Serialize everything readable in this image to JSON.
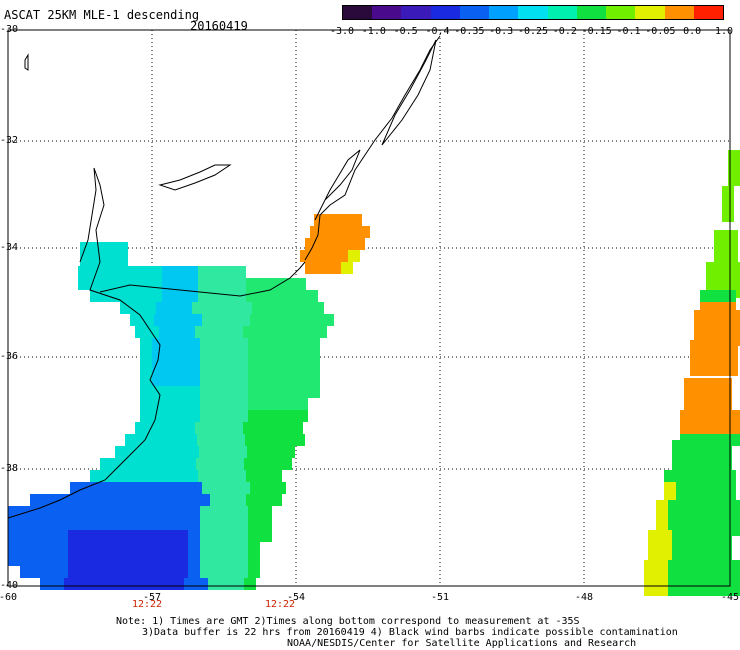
{
  "header": {
    "title": "ASCAT 25KM MLE-1 descending",
    "date": "20160419"
  },
  "colorbar": {
    "labels": [
      "-3.0",
      "-1.0",
      "-0.5",
      "-0.4",
      "-0.35",
      "-0.3",
      "-0.25",
      "-0.2",
      "-0.15",
      "-0.1",
      "-0.05",
      "0.0",
      "1.0"
    ],
    "colors": [
      "#2a0a3a",
      "#4a0a8c",
      "#3a1ab8",
      "#1a2ae0",
      "#0a60f0",
      "#00a0ff",
      "#00e0f0",
      "#00f0b0",
      "#10e040",
      "#70f000",
      "#e0f000",
      "#ff9000",
      "#ff2000"
    ]
  },
  "axes": {
    "lat_labels": [
      "-30",
      "-32",
      "-34",
      "-36",
      "-38",
      "-40"
    ],
    "lon_labels": [
      "-60",
      "-57",
      "-54",
      "-51",
      "-48",
      "-45"
    ],
    "times": [
      "12:22",
      "12:22"
    ]
  },
  "notes": {
    "line1": "Note: 1) Times are GMT 2)Times along bottom correspond to measurement at -35S",
    "line2": "3)Data buffer is 22 hrs from 20160419 4) Black wind barbs indicate possible contamination",
    "line3": "NOAA/NESDIS/Center for Satellite Applications and Research"
  }
}
